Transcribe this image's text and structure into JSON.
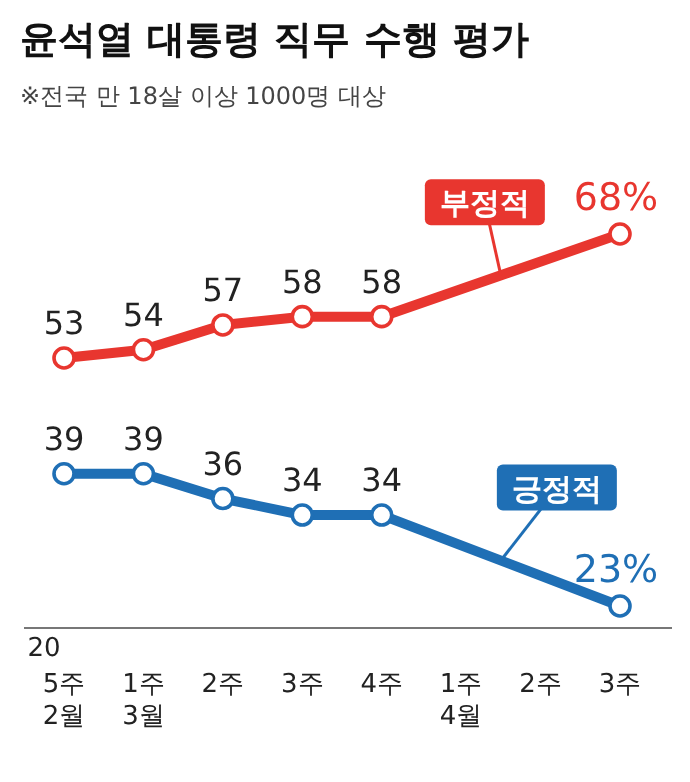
{
  "chart_data": {
    "type": "line",
    "title": "윤석열 대통령 직무 수행 평가",
    "annotations": [
      "※전국 만 18살 이상 1000명 대상",
      "20"
    ],
    "categories": [
      "5주 2월",
      "1주 3월",
      "2주",
      "3주",
      "4주",
      "1주 4월",
      "2주",
      "3주"
    ],
    "series": [
      {
        "name": "부정적",
        "color": "#e8362f",
        "values": [
          53,
          54,
          57,
          58,
          58,
          null,
          null,
          68
        ],
        "value_labels": [
          "53",
          "54",
          "57",
          "58",
          "58",
          null,
          null,
          "68%"
        ]
      },
      {
        "name": "긍정적",
        "color": "#1f6fb5",
        "values": [
          39,
          39,
          36,
          34,
          34,
          null,
          null,
          23
        ],
        "value_labels": [
          "39",
          "39",
          "36",
          "34",
          "34",
          null,
          null,
          "23%"
        ]
      }
    ],
    "marker": "circle",
    "legend": false
  }
}
